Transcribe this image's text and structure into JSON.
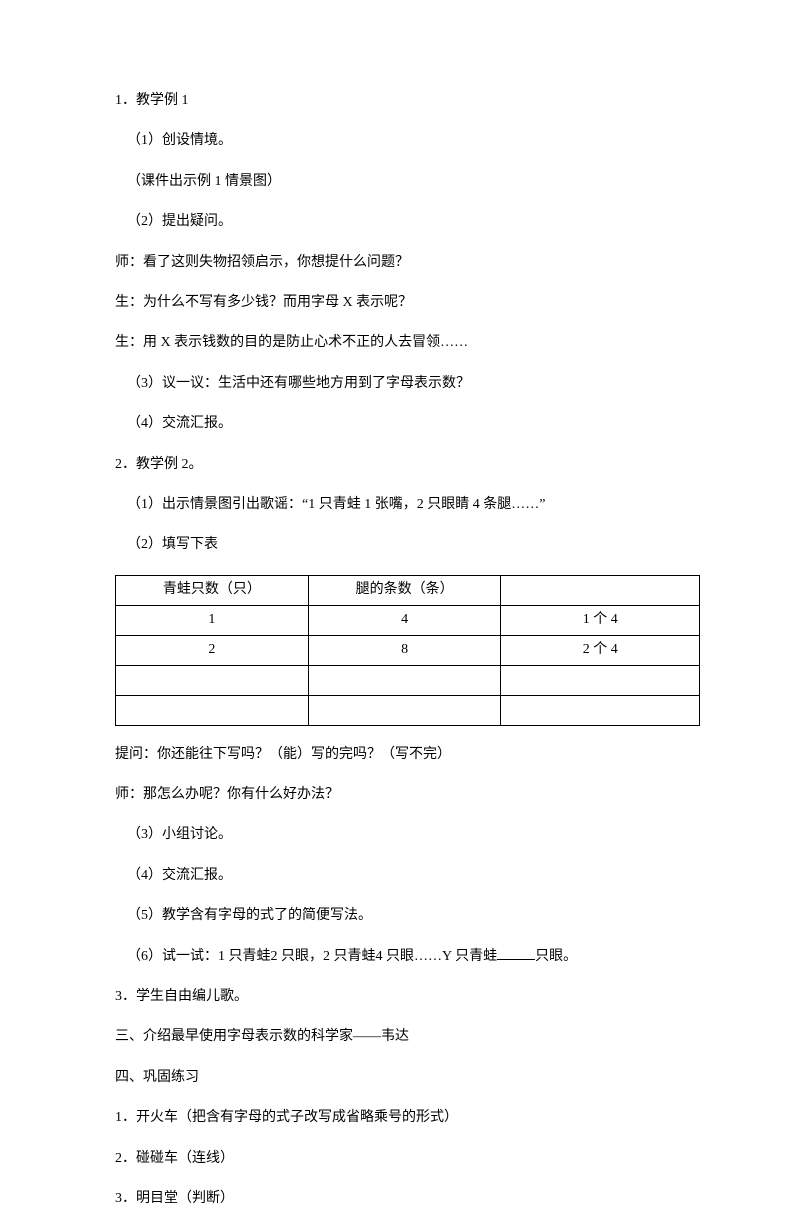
{
  "lines": {
    "l1": "1．教学例 1",
    "l2": "（1）创设情境。",
    "l3": "（课件出示例 1 情景图）",
    "l4": "（2）提出疑问。",
    "l5": "师：看了这则失物招领启示，你想提什么问题？",
    "l6": "生：为什么不写有多少钱？而用字母 X 表示呢？",
    "l7": "生：用 X 表示钱数的目的是防止心术不正的人去冒领……",
    "l8": "（3）议一议：生活中还有哪些地方用到了字母表示数？",
    "l9": "（4）交流汇报。",
    "l10": "2．教学例 2。",
    "l11": "（1）出示情景图引出歌谣：“1 只青蛙 1 张嘴，2 只眼睛 4 条腿……”",
    "l12": "（2）填写下表",
    "l13": "提问：你还能往下写吗？（能）写的完吗？（写不完）",
    "l14": "师：那怎么办呢？你有什么好办法？",
    "l15": "（3）小组讨论。",
    "l16": "（4）交流汇报。",
    "l17": "（5）教学含有字母的式了的简便写法。",
    "l18a": "（6）试一试：1 只青蛙2 只眼，2 只青蛙4 只眼……Y 只青蛙",
    "l18b": "只眼。",
    "l19": "3．学生自由编儿歌。",
    "l20": "三、介绍最早使用字母表示数的科学家——韦达",
    "l21": "四、巩固练习",
    "l22": "1．开火车（把含有字母的式子改写成省略乘号的形式）",
    "l23": "2．碰碰车（连线）",
    "l24": "3．明目堂（判断）"
  },
  "table": {
    "header": {
      "c1": "青蛙只数（只）",
      "c2": "腿的条数（条）",
      "c3": ""
    },
    "rows": [
      {
        "c1": "1",
        "c2": "4",
        "c3": "1 个 4"
      },
      {
        "c1": "2",
        "c2": "8",
        "c3": "2 个 4"
      },
      {
        "c1": "",
        "c2": "",
        "c3": ""
      },
      {
        "c1": "",
        "c2": "",
        "c3": ""
      }
    ]
  }
}
